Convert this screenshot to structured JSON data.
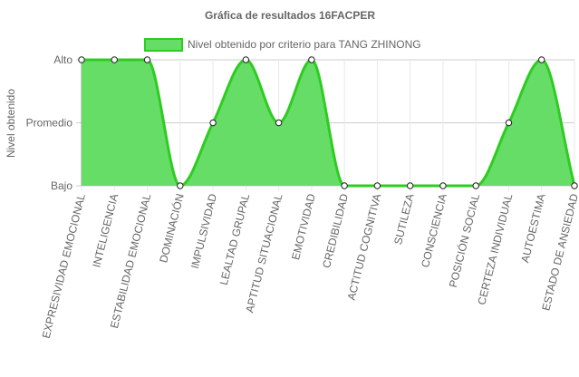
{
  "chart_data": {
    "type": "area",
    "title": "Gráfica de resultados 16FACPER",
    "ylabel": "Nivel obtenido",
    "y_ticks": [
      "Bajo",
      "Promedio",
      "Alto"
    ],
    "ylim": [
      0,
      2
    ],
    "grid": true,
    "legend_position": "top",
    "categories": [
      "EXPRESIVIDAD EMOCIONAL",
      "INTELIGENCIA",
      "ESTABILIDAD EMOCIONAL",
      "DOMINACIÓN",
      "IMPULSIVIDAD",
      "LEALTAD GRUPAL",
      "APTITUD SITUACIONAL",
      "EMOTIVIDAD",
      "CREDIBILIDAD",
      "ACTITUD COGNITIVA",
      "SUTILEZA",
      "CONSCIENCIA",
      "POSICIÓN SOCIAL",
      "CERTEZA INDIVIDUAL",
      "AUTOESTIMA",
      "ESTADO DE ANSIEDAD"
    ],
    "series": [
      {
        "name": "Nivel obtenido por criterio para TANG ZHINONG",
        "values": [
          2,
          2,
          2,
          0,
          1,
          2,
          1,
          2,
          0,
          0,
          0,
          0,
          0,
          1,
          2,
          0
        ],
        "color": "#2ecc22",
        "fill": "#66dd66"
      }
    ]
  }
}
